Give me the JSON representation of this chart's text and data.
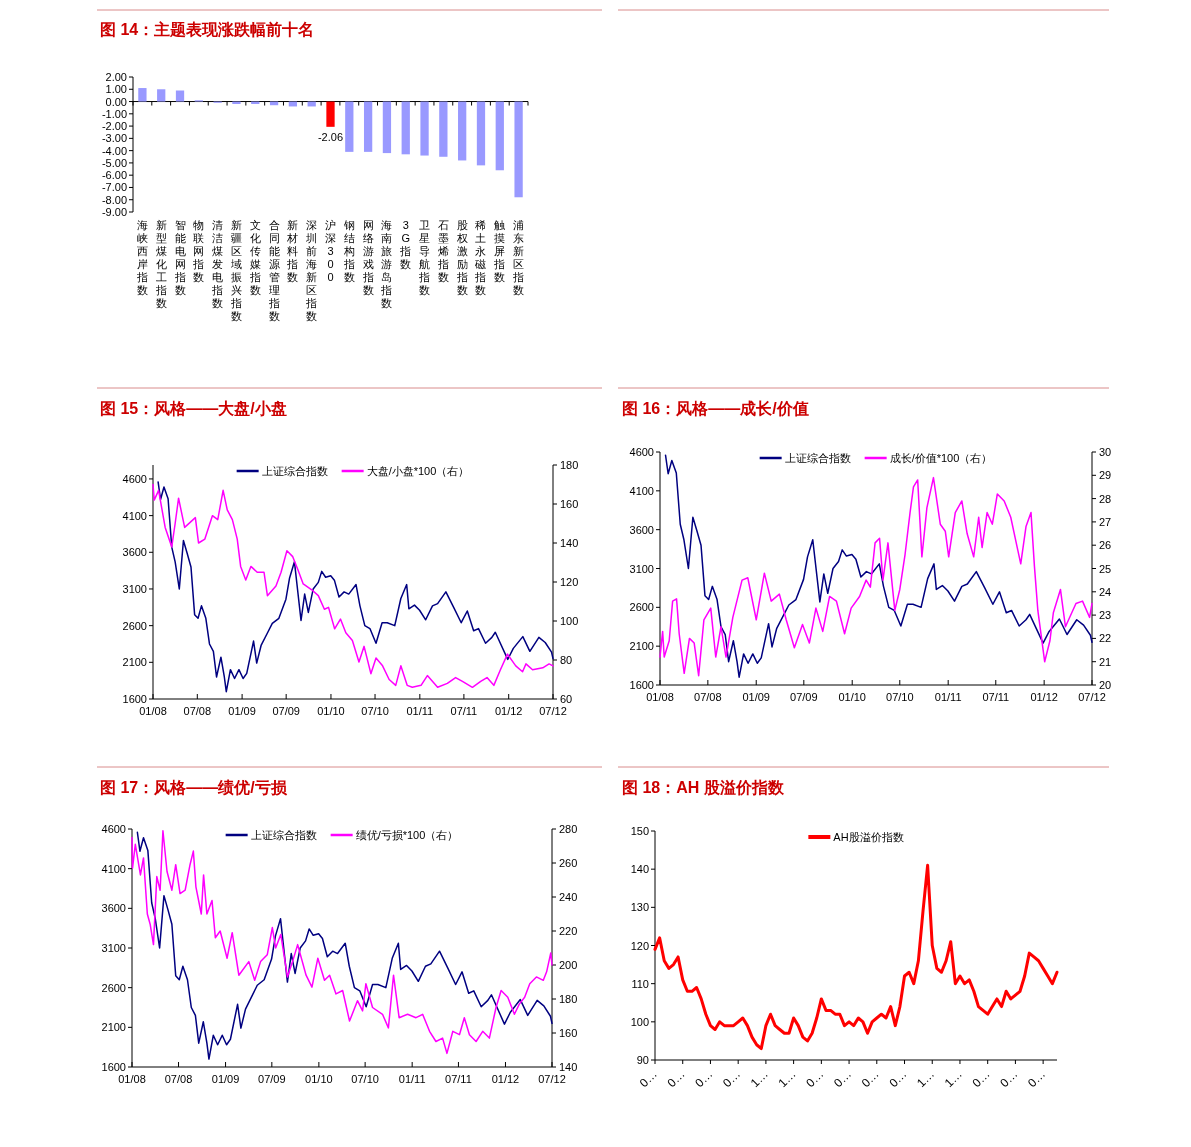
{
  "chart_data": [
    {
      "type": "bar",
      "title": "图 14：主题表现涨跌幅前十名",
      "categories": [
        "海峡西岸指数",
        "新型煤化工指数",
        "智能电网指数",
        "物联网指数",
        "清洁煤发电指数",
        "新疆区域振兴指数",
        "文化传媒指数",
        "合同能源管理指数",
        "新材料指数",
        "深圳前海新区指数",
        "沪深300",
        "钢结构指数",
        "网络游戏指数",
        "海南旅游岛指数",
        "3G指数",
        "卫星导航指数",
        "石墨烯指数",
        "股权激励指数",
        "稀土永磁指数",
        "触摸屏指数",
        "浦东新区指数"
      ],
      "values": [
        1.1,
        1.0,
        0.9,
        0.1,
        -0.1,
        -0.2,
        -0.2,
        -0.3,
        -0.4,
        -0.4,
        -2.06,
        -4.1,
        -4.1,
        -4.2,
        -4.3,
        -4.4,
        -4.5,
        -4.8,
        -5.2,
        -5.6,
        -7.8
      ],
      "colors": [
        "#9999ff",
        "#9999ff",
        "#9999ff",
        "#9999ff",
        "#9999ff",
        "#9999ff",
        "#9999ff",
        "#9999ff",
        "#9999ff",
        "#9999ff",
        "#ff0000",
        "#9999ff",
        "#9999ff",
        "#9999ff",
        "#9999ff",
        "#9999ff",
        "#9999ff",
        "#9999ff",
        "#9999ff",
        "#9999ff",
        "#9999ff"
      ],
      "value_labels": [
        null,
        null,
        null,
        null,
        null,
        null,
        null,
        null,
        null,
        null,
        "-2.06",
        null,
        null,
        null,
        null,
        null,
        null,
        null,
        null,
        null,
        null
      ],
      "ylim": [
        -9,
        2
      ],
      "yticks": [
        {
          "value": 2,
          "label": "2.00"
        },
        {
          "value": 1,
          "label": "1.00"
        },
        {
          "value": 0,
          "label": "0.00"
        },
        {
          "value": -1,
          "label": "-1.00"
        },
        {
          "value": -2,
          "label": "-2.00"
        },
        {
          "value": -3,
          "label": "-3.00"
        },
        {
          "value": -4,
          "label": "-4.00"
        },
        {
          "value": -5,
          "label": "-5.00"
        },
        {
          "value": -6,
          "label": "-6.00"
        },
        {
          "value": -7,
          "label": "-7.00"
        },
        {
          "value": -8,
          "label": "-8.00"
        },
        {
          "value": -9,
          "label": "-9.00"
        }
      ]
    },
    {
      "type": "line",
      "title": "图 15：风格——大盘/小盘",
      "legend": "top",
      "xlim": [
        "2008-01-01",
        "2012-07-01"
      ],
      "xticks": [
        {
          "value": "2008-01-01",
          "label": "01/08"
        },
        {
          "value": "2008-07-01",
          "label": "07/08"
        },
        {
          "value": "2009-01-01",
          "label": "01/09"
        },
        {
          "value": "2009-07-01",
          "label": "07/09"
        },
        {
          "value": "2010-01-01",
          "label": "01/10"
        },
        {
          "value": "2010-07-01",
          "label": "07/10"
        },
        {
          "value": "2011-01-01",
          "label": "01/11"
        },
        {
          "value": "2011-07-01",
          "label": "07/11"
        },
        {
          "value": "2012-01-01",
          "label": "01/12"
        },
        {
          "value": "2012-07-01",
          "label": "07/12"
        }
      ],
      "ylim": [
        1600,
        4790
      ],
      "yticks": [
        1600,
        2100,
        2600,
        3100,
        3600,
        4100,
        4600
      ],
      "y2lim": [
        60,
        180
      ],
      "y2ticks": [
        60,
        80,
        100,
        120,
        140,
        160,
        180
      ],
      "series": [
        {
          "name": "上证综合指数",
          "color": "#000080",
          "x": [
            "2008-01-22",
            "2008-02-01",
            "2008-02-15",
            "2008-03-03",
            "2008-03-18",
            "2008-04-01",
            "2008-04-18",
            "2008-05-05",
            "2008-05-20",
            "2008-06-05",
            "2008-06-20",
            "2008-07-04",
            "2008-07-18",
            "2008-08-05",
            "2008-08-20",
            "2008-09-05",
            "2008-09-18",
            "2008-10-06",
            "2008-10-20",
            "2008-10-28",
            "2008-11-14",
            "2008-12-01",
            "2008-12-19",
            "2009-01-05",
            "2009-01-20",
            "2009-02-17",
            "2009-03-02",
            "2009-03-20",
            "2009-04-15",
            "2009-05-05",
            "2009-06-01",
            "2009-06-30",
            "2009-07-15",
            "2009-08-04",
            "2009-08-31",
            "2009-09-15",
            "2009-09-30",
            "2009-10-20",
            "2009-11-10",
            "2009-11-24",
            "2009-12-10",
            "2009-12-31",
            "2010-01-15",
            "2010-02-03",
            "2010-02-24",
            "2010-03-15",
            "2010-04-14",
            "2010-04-30",
            "2010-05-20",
            "2010-06-10",
            "2010-07-05",
            "2010-07-30",
            "2010-08-20",
            "2010-09-20",
            "2010-10-15",
            "2010-11-08",
            "2010-11-17",
            "2010-12-10",
            "2010-12-31",
            "2011-01-25",
            "2011-02-22",
            "2011-03-15",
            "2011-04-18",
            "2011-05-20",
            "2011-06-20",
            "2011-07-15",
            "2011-08-10",
            "2011-08-30",
            "2011-09-28",
            "2011-10-24",
            "2011-11-07",
            "2011-12-28",
            "2012-01-20",
            "2012-02-28",
            "2012-03-28",
            "2012-05-04",
            "2012-05-30",
            "2012-06-25",
            "2012-07-01"
          ],
          "values": [
            4559,
            4320,
            4490,
            4330,
            3670,
            3470,
            3100,
            3760,
            3590,
            3400,
            2750,
            2700,
            2870,
            2700,
            2350,
            2250,
            1900,
            2170,
            1900,
            1700,
            2000,
            1880,
            2000,
            1880,
            1950,
            2390,
            2090,
            2330,
            2500,
            2630,
            2700,
            2960,
            3250,
            3470,
            2670,
            3030,
            2780,
            3100,
            3190,
            3340,
            3260,
            3280,
            3220,
            2990,
            3060,
            3030,
            3160,
            2870,
            2600,
            2560,
            2360,
            2640,
            2640,
            2600,
            2970,
            3160,
            2830,
            2880,
            2810,
            2680,
            2870,
            2900,
            3060,
            2850,
            2640,
            2800,
            2530,
            2560,
            2360,
            2440,
            2510,
            2140,
            2290,
            2450,
            2250,
            2440,
            2370,
            2240,
            2150
          ]
        },
        {
          "name": "大盘/小盘*100（右）",
          "color": "#ff00ff",
          "axis": "y2",
          "x": [
            "2008-01-01",
            "2008-01-06",
            "2008-01-24",
            "2008-02-20",
            "2008-03-18",
            "2008-04-01",
            "2008-04-15",
            "2008-05-10",
            "2008-06-23",
            "2008-07-06",
            "2008-08-01",
            "2008-09-01",
            "2008-09-23",
            "2008-10-15",
            "2008-11-01",
            "2008-11-22",
            "2008-12-12",
            "2008-12-26",
            "2009-01-16",
            "2009-02-06",
            "2009-03-04",
            "2009-04-01",
            "2009-04-15",
            "2009-05-20",
            "2009-06-10",
            "2009-07-04",
            "2009-07-28",
            "2009-08-19",
            "2009-09-09",
            "2009-10-14",
            "2009-11-10",
            "2009-12-05",
            "2009-12-22",
            "2010-01-16",
            "2010-02-09",
            "2010-03-03",
            "2010-03-30",
            "2010-04-26",
            "2010-05-17",
            "2010-06-14",
            "2010-07-05",
            "2010-08-01",
            "2010-08-28",
            "2010-09-24",
            "2010-10-15",
            "2010-11-10",
            "2010-12-01",
            "2011-01-06",
            "2011-02-01",
            "2011-03-15",
            "2011-04-24",
            "2011-05-28",
            "2011-06-25",
            "2011-08-05",
            "2011-09-08",
            "2011-10-04",
            "2011-11-01",
            "2011-11-28",
            "2011-12-27",
            "2012-01-30",
            "2012-02-27",
            "2012-03-12",
            "2012-04-08",
            "2012-05-20",
            "2012-06-15",
            "2012-07-01"
          ],
          "values": [
            170,
            162,
            167,
            148,
            138,
            150,
            163,
            148,
            153,
            140,
            142,
            154,
            152,
            167,
            157,
            152,
            142,
            128,
            121,
            128,
            125,
            125,
            113,
            118,
            125,
            136,
            133,
            126,
            119,
            116,
            113,
            106,
            107,
            96,
            101,
            94,
            90,
            79,
            87,
            73,
            81,
            77,
            70,
            67,
            77,
            67,
            66,
            67,
            72,
            66,
            68,
            71,
            69,
            66,
            69,
            71,
            67,
            75,
            83,
            77,
            74,
            78,
            75,
            76,
            78,
            77
          ]
        }
      ]
    },
    {
      "type": "line",
      "title": "图 16：风格——成长/价值",
      "legend": "top",
      "xlim": [
        "2008-01-01",
        "2012-07-01"
      ],
      "xticks": [
        {
          "value": "2008-01-01",
          "label": "01/08"
        },
        {
          "value": "2008-07-01",
          "label": "07/08"
        },
        {
          "value": "2009-01-01",
          "label": "01/09"
        },
        {
          "value": "2009-07-01",
          "label": "07/09"
        },
        {
          "value": "2010-01-01",
          "label": "01/10"
        },
        {
          "value": "2010-07-01",
          "label": "07/10"
        },
        {
          "value": "2011-01-01",
          "label": "01/11"
        },
        {
          "value": "2011-07-01",
          "label": "07/11"
        },
        {
          "value": "2012-01-01",
          "label": "01/12"
        },
        {
          "value": "2012-07-01",
          "label": "07/12"
        }
      ],
      "ylim": [
        1600,
        4600
      ],
      "yticks": [
        1600,
        2100,
        2600,
        3100,
        3600,
        4100,
        4600
      ],
      "y2lim": [
        20,
        30
      ],
      "y2ticks": [
        20,
        21,
        22,
        23,
        24,
        25,
        26,
        27,
        28,
        29,
        30
      ],
      "series": [
        {
          "name": "上证综合指数",
          "color": "#000080",
          "x": [
            "2008-01-22",
            "2008-02-01",
            "2008-02-15",
            "2008-03-03",
            "2008-03-18",
            "2008-04-01",
            "2008-04-18",
            "2008-05-05",
            "2008-05-20",
            "2008-06-05",
            "2008-06-20",
            "2008-07-04",
            "2008-07-18",
            "2008-08-05",
            "2008-08-20",
            "2008-09-05",
            "2008-09-18",
            "2008-10-06",
            "2008-10-20",
            "2008-10-28",
            "2008-11-14",
            "2008-12-01",
            "2008-12-19",
            "2009-01-05",
            "2009-01-20",
            "2009-02-17",
            "2009-03-02",
            "2009-03-20",
            "2009-04-15",
            "2009-05-05",
            "2009-06-01",
            "2009-06-30",
            "2009-07-15",
            "2009-08-04",
            "2009-08-31",
            "2009-09-15",
            "2009-09-30",
            "2009-10-20",
            "2009-11-10",
            "2009-11-24",
            "2009-12-10",
            "2009-12-31",
            "2010-01-15",
            "2010-02-03",
            "2010-02-24",
            "2010-03-15",
            "2010-04-14",
            "2010-04-30",
            "2010-05-20",
            "2010-06-10",
            "2010-07-05",
            "2010-07-30",
            "2010-08-20",
            "2010-09-20",
            "2010-10-15",
            "2010-11-08",
            "2010-11-17",
            "2010-12-10",
            "2010-12-31",
            "2011-01-25",
            "2011-02-22",
            "2011-03-15",
            "2011-04-18",
            "2011-05-20",
            "2011-06-20",
            "2011-07-15",
            "2011-08-10",
            "2011-08-30",
            "2011-09-28",
            "2011-10-24",
            "2011-11-07",
            "2011-12-28",
            "2012-01-20",
            "2012-02-28",
            "2012-03-28",
            "2012-05-04",
            "2012-05-30",
            "2012-06-25",
            "2012-07-01"
          ],
          "values": [
            4559,
            4320,
            4490,
            4330,
            3670,
            3470,
            3100,
            3760,
            3590,
            3400,
            2750,
            2700,
            2870,
            2700,
            2350,
            2250,
            1900,
            2170,
            1900,
            1700,
            2000,
            1880,
            2000,
            1880,
            1950,
            2390,
            2090,
            2330,
            2500,
            2630,
            2700,
            2960,
            3250,
            3470,
            2670,
            3030,
            2780,
            3100,
            3190,
            3340,
            3260,
            3280,
            3220,
            2990,
            3060,
            3030,
            3160,
            2870,
            2600,
            2560,
            2360,
            2640,
            2640,
            2600,
            2970,
            3160,
            2830,
            2880,
            2810,
            2680,
            2870,
            2900,
            3060,
            2850,
            2640,
            2800,
            2530,
            2560,
            2360,
            2440,
            2510,
            2140,
            2290,
            2450,
            2250,
            2440,
            2370,
            2240,
            2150
          ]
        },
        {
          "name": "成长/价值*100（右）",
          "color": "#ff00ff",
          "axis": "y2",
          "x": [
            "2008-01-01",
            "2008-01-11",
            "2008-01-17",
            "2008-02-05",
            "2008-02-18",
            "2008-03-04",
            "2008-03-14",
            "2008-04-02",
            "2008-04-22",
            "2008-05-10",
            "2008-05-27",
            "2008-06-16",
            "2008-07-12",
            "2008-07-31",
            "2008-08-20",
            "2008-09-08",
            "2008-10-04",
            "2008-11-08",
            "2008-11-30",
            "2009-01-01",
            "2009-02-01",
            "2009-02-27",
            "2009-03-30",
            "2009-04-25",
            "2009-05-26",
            "2009-06-26",
            "2009-07-22",
            "2009-08-16",
            "2009-09-11",
            "2009-10-07",
            "2009-11-02",
            "2009-12-03",
            "2009-12-28",
            "2010-01-29",
            "2010-02-23",
            "2010-03-11",
            "2010-03-29",
            "2010-04-15",
            "2010-04-28",
            "2010-05-17",
            "2010-06-12",
            "2010-07-01",
            "2010-07-21",
            "2010-08-09",
            "2010-08-22",
            "2010-09-07",
            "2010-09-23",
            "2010-10-12",
            "2010-11-06",
            "2010-12-02",
            "2010-12-21",
            "2011-01-03",
            "2011-01-28",
            "2011-02-22",
            "2011-03-14",
            "2011-04-08",
            "2011-04-27",
            "2011-05-10",
            "2011-05-29",
            "2011-06-18",
            "2011-07-07",
            "2011-08-02",
            "2011-08-27",
            "2011-09-15",
            "2011-10-04",
            "2011-10-24",
            "2011-11-12",
            "2011-11-25",
            "2011-12-08",
            "2012-01-03",
            "2012-01-23",
            "2012-02-05",
            "2012-03-03",
            "2012-03-22",
            "2012-05-01",
            "2012-05-26",
            "2012-06-22",
            "2012-07-01"
          ],
          "values": [
            21.2,
            22.3,
            21.2,
            21.9,
            23.6,
            23.7,
            22.2,
            20.5,
            22.0,
            21.8,
            20.4,
            22.8,
            23.3,
            21.2,
            22.5,
            21.2,
            22.9,
            24.5,
            24.6,
            22.8,
            24.8,
            23.6,
            23.9,
            22.8,
            21.6,
            22.6,
            21.8,
            23.3,
            22.3,
            23.8,
            23.6,
            22.2,
            23.3,
            23.8,
            24.5,
            24.2,
            26.1,
            26.3,
            24.5,
            26.1,
            23.2,
            24.1,
            25.6,
            27.4,
            28.5,
            28.8,
            25.5,
            27.6,
            28.9,
            26.9,
            26.6,
            25.5,
            27.4,
            27.9,
            26.5,
            25.5,
            27.2,
            25.9,
            27.4,
            26.9,
            28.2,
            27.9,
            27.2,
            26.2,
            25.2,
            26.8,
            27.4,
            25.1,
            23.2,
            21.0,
            21.9,
            23.1,
            24.1,
            22.5,
            23.5,
            23.6,
            22.9,
            23.5
          ]
        }
      ]
    },
    {
      "type": "line",
      "title": "图 17：风格——绩优/亏损",
      "legend": "top",
      "xlim": [
        "2008-01-01",
        "2012-07-01"
      ],
      "xticks": [
        {
          "value": "2008-01-01",
          "label": "01/08"
        },
        {
          "value": "2008-07-01",
          "label": "07/08"
        },
        {
          "value": "2009-01-01",
          "label": "01/09"
        },
        {
          "value": "2009-07-01",
          "label": "07/09"
        },
        {
          "value": "2010-01-01",
          "label": "01/10"
        },
        {
          "value": "2010-07-01",
          "label": "07/10"
        },
        {
          "value": "2011-01-01",
          "label": "01/11"
        },
        {
          "value": "2011-07-01",
          "label": "07/11"
        },
        {
          "value": "2012-01-01",
          "label": "01/12"
        },
        {
          "value": "2012-07-01",
          "label": "07/12"
        }
      ],
      "ylim": [
        1600,
        4600
      ],
      "yticks": [
        1600,
        2100,
        2600,
        3100,
        3600,
        4100,
        4600
      ],
      "y2lim": [
        140,
        280
      ],
      "y2ticks": [
        140,
        160,
        180,
        200,
        220,
        240,
        260,
        280
      ],
      "series": [
        {
          "name": "上证综合指数",
          "color": "#000080",
          "x": [
            "2008-01-22",
            "2008-02-01",
            "2008-02-15",
            "2008-03-03",
            "2008-03-18",
            "2008-04-01",
            "2008-04-18",
            "2008-05-05",
            "2008-05-20",
            "2008-06-05",
            "2008-06-20",
            "2008-07-04",
            "2008-07-18",
            "2008-08-05",
            "2008-08-20",
            "2008-09-05",
            "2008-09-18",
            "2008-10-06",
            "2008-10-20",
            "2008-10-28",
            "2008-11-14",
            "2008-12-01",
            "2008-12-19",
            "2009-01-05",
            "2009-01-20",
            "2009-02-17",
            "2009-03-02",
            "2009-03-20",
            "2009-04-15",
            "2009-05-05",
            "2009-06-01",
            "2009-06-30",
            "2009-07-15",
            "2009-08-04",
            "2009-08-31",
            "2009-09-15",
            "2009-09-30",
            "2009-10-20",
            "2009-11-10",
            "2009-11-24",
            "2009-12-10",
            "2009-12-31",
            "2010-01-15",
            "2010-02-03",
            "2010-02-24",
            "2010-03-15",
            "2010-04-14",
            "2010-04-30",
            "2010-05-20",
            "2010-06-10",
            "2010-07-05",
            "2010-07-30",
            "2010-08-20",
            "2010-09-20",
            "2010-10-15",
            "2010-11-08",
            "2010-11-17",
            "2010-12-10",
            "2010-12-31",
            "2011-01-25",
            "2011-02-22",
            "2011-03-15",
            "2011-04-18",
            "2011-05-20",
            "2011-06-20",
            "2011-07-15",
            "2011-08-10",
            "2011-08-30",
            "2011-09-28",
            "2011-10-24",
            "2011-11-07",
            "2011-12-28",
            "2012-01-20",
            "2012-02-28",
            "2012-03-28",
            "2012-05-04",
            "2012-05-30",
            "2012-06-25",
            "2012-07-01"
          ],
          "values": [
            4559,
            4320,
            4490,
            4330,
            3670,
            3470,
            3100,
            3760,
            3590,
            3400,
            2750,
            2700,
            2870,
            2700,
            2350,
            2250,
            1900,
            2170,
            1900,
            1700,
            2000,
            1880,
            2000,
            1880,
            1950,
            2390,
            2090,
            2330,
            2500,
            2630,
            2700,
            2960,
            3250,
            3470,
            2670,
            3030,
            2780,
            3100,
            3190,
            3340,
            3260,
            3280,
            3220,
            2990,
            3060,
            3030,
            3160,
            2870,
            2600,
            2560,
            2360,
            2640,
            2640,
            2600,
            2970,
            3160,
            2830,
            2880,
            2810,
            2680,
            2870,
            2900,
            3060,
            2850,
            2640,
            2800,
            2530,
            2560,
            2360,
            2440,
            2510,
            2140,
            2290,
            2450,
            2250,
            2440,
            2370,
            2240,
            2150
          ]
        },
        {
          "name": "绩优/亏损*100（右）",
          "color": "#ff00ff",
          "axis": "y2",
          "x": [
            "2008-01-01",
            "2008-01-03",
            "2008-01-14",
            "2008-02-03",
            "2008-02-15",
            "2008-03-01",
            "2008-03-12",
            "2008-03-25",
            "2008-04-07",
            "2008-04-20",
            "2008-05-01",
            "2008-05-17",
            "2008-06-05",
            "2008-06-20",
            "2008-07-07",
            "2008-07-27",
            "2008-08-15",
            "2008-08-28",
            "2008-09-07",
            "2008-09-28",
            "2008-10-07",
            "2008-10-20",
            "2008-11-09",
            "2008-11-22",
            "2008-12-11",
            "2009-01-07",
            "2009-01-27",
            "2009-02-22",
            "2009-04-02",
            "2009-04-25",
            "2009-05-18",
            "2009-06-13",
            "2009-07-03",
            "2009-07-16",
            "2009-08-05",
            "2009-08-31",
            "2009-09-20",
            "2009-10-10",
            "2009-11-12",
            "2009-12-05",
            "2009-12-28",
            "2010-01-23",
            "2010-02-12",
            "2010-03-09",
            "2010-04-04",
            "2010-05-01",
            "2010-06-01",
            "2010-06-21",
            "2010-07-04",
            "2010-07-30",
            "2010-09-07",
            "2010-09-30",
            "2010-10-20",
            "2010-11-11",
            "2010-12-14",
            "2011-01-16",
            "2011-02-11",
            "2011-03-10",
            "2011-04-04",
            "2011-04-30",
            "2011-05-17",
            "2011-06-09",
            "2011-07-05",
            "2011-07-24",
            "2011-08-13",
            "2011-09-08",
            "2011-10-04",
            "2011-10-30",
            "2011-11-25",
            "2011-12-15",
            "2012-01-10",
            "2012-02-05",
            "2012-02-24",
            "2012-03-16",
            "2012-04-05",
            "2012-05-01",
            "2012-05-28",
            "2012-06-10",
            "2012-06-26",
            "2012-07-01"
          ],
          "values": [
            275,
            257,
            271,
            253,
            263,
            230,
            224,
            212,
            252,
            244,
            279,
            255,
            244,
            259,
            242,
            244,
            259,
            267,
            246,
            230,
            253,
            230,
            238,
            216,
            220,
            204,
            219,
            194,
            202,
            191,
            202,
            206,
            222,
            210,
            218,
            193,
            202,
            212,
            194,
            187,
            204,
            191,
            194,
            183,
            185,
            167,
            179,
            173,
            189,
            175,
            171,
            163,
            194,
            169,
            171,
            169,
            171,
            161,
            155,
            157,
            148,
            161,
            159,
            169,
            159,
            155,
            161,
            157,
            175,
            185,
            181,
            171,
            177,
            181,
            189,
            193,
            191,
            196,
            207,
            200
          ]
        }
      ]
    },
    {
      "type": "line",
      "title": "图 18：AH 股溢价指数",
      "legend": "top",
      "categories": [
        "0…",
        null,
        null,
        null,
        null,
        null,
        "0…",
        null,
        null,
        null,
        null,
        null,
        "0…",
        null,
        null,
        null,
        null,
        null,
        "0…",
        null,
        null,
        null,
        null,
        null,
        "1…",
        null,
        null,
        null,
        null,
        null,
        "1…",
        null,
        null,
        null,
        null,
        null,
        "0…",
        null,
        null,
        null,
        null,
        null,
        "0…",
        null,
        null,
        null,
        null,
        null,
        "0…",
        null,
        null,
        null,
        null,
        null,
        "0…",
        null,
        null,
        null,
        null,
        null,
        "1…",
        null,
        null,
        null,
        null,
        null,
        "1…",
        null,
        null,
        null,
        null,
        null,
        "0…",
        null,
        null,
        null,
        null,
        null,
        "0…",
        null,
        null,
        null,
        null,
        null,
        "0…",
        null,
        null,
        null
      ],
      "ylim": [
        90,
        150
      ],
      "yticks": [
        90,
        100,
        110,
        120,
        130,
        140,
        150
      ],
      "series": [
        {
          "name": "AH股溢价指数",
          "color": "#ff0000",
          "values": [
            119,
            122,
            116,
            114,
            115,
            117,
            111,
            108,
            108,
            109,
            106,
            102,
            99,
            98,
            100,
            99,
            99,
            99,
            100,
            101,
            99,
            96,
            94,
            93,
            99,
            102,
            99,
            98,
            97,
            97,
            101,
            99,
            96,
            95,
            97,
            101,
            106,
            103,
            103,
            102,
            102,
            99,
            100,
            99,
            101,
            100,
            97,
            100,
            101,
            102,
            101,
            104,
            99,
            104,
            112,
            113,
            110,
            116,
            129,
            141,
            120,
            114,
            113,
            116,
            121,
            110,
            112,
            110,
            111,
            108,
            104,
            103,
            102,
            104,
            106,
            104,
            108,
            106,
            107,
            108,
            112,
            118,
            117,
            116,
            114,
            112,
            110,
            113
          ]
        }
      ]
    }
  ]
}
